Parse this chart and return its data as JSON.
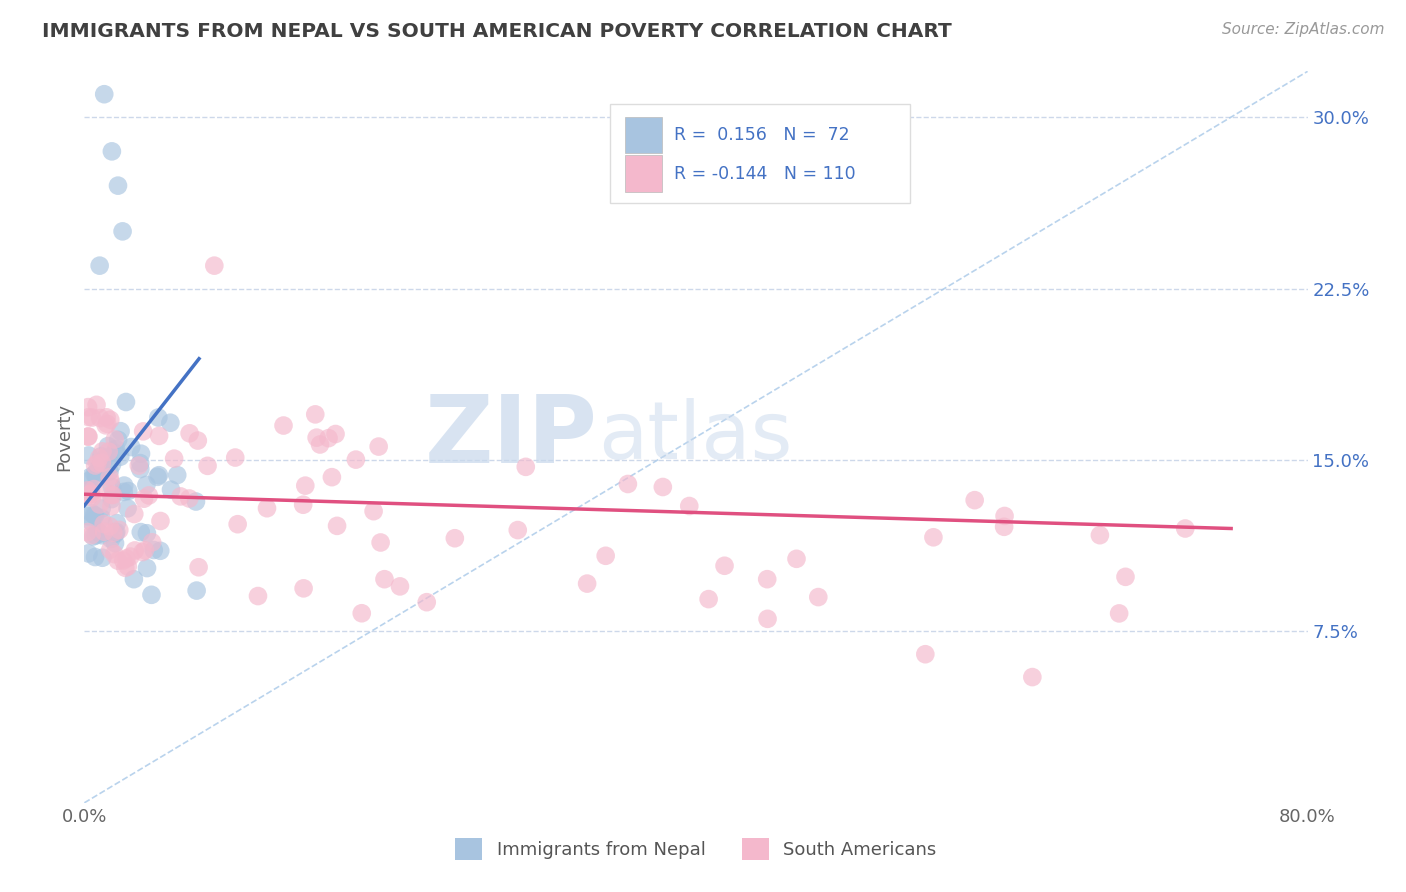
{
  "title": "IMMIGRANTS FROM NEPAL VS SOUTH AMERICAN POVERTY CORRELATION CHART",
  "source": "Source: ZipAtlas.com",
  "ylabel": "Poverty",
  "xlim": [
    0.0,
    0.8
  ],
  "ylim": [
    0.0,
    0.32
  ],
  "color_nepal": "#a8c4e0",
  "color_sa": "#f4b8cc",
  "line_color_nepal": "#4472c4",
  "line_color_sa": "#e05080",
  "title_color": "#404040",
  "legend_text_color": "#4472c4",
  "background_color": "#ffffff",
  "grid_color": "#c8d4e8"
}
